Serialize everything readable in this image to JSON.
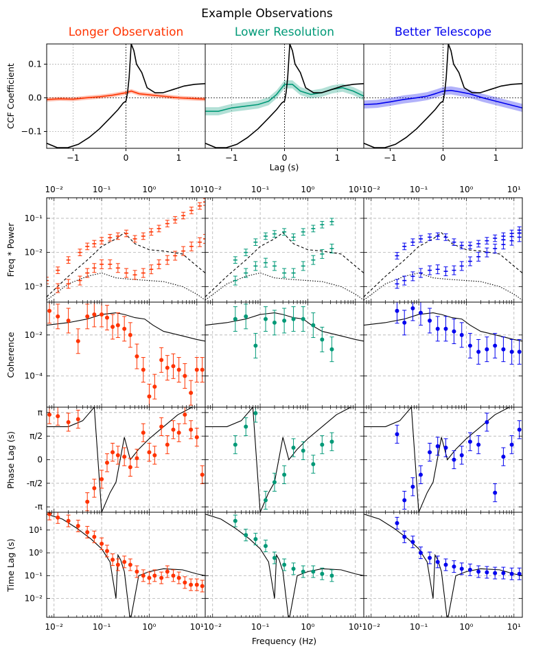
{
  "figure": {
    "title": "Example Observations",
    "colors": {
      "longer": "#ff3300",
      "lower": "#009977",
      "better": "#0000ee",
      "model": "#000000",
      "grid": "#b0b0b0"
    },
    "columns": [
      {
        "key": "longer",
        "title": "Longer Observation"
      },
      {
        "key": "lower",
        "title": "Lower Resolution"
      },
      {
        "key": "better",
        "title": "Better Telescope"
      }
    ]
  },
  "chart_data": [
    {
      "type": "line",
      "id": "ccf",
      "title": "",
      "xlabel": "Lag (s)",
      "ylabel": "CCF Coefficient",
      "xlim": [
        -1.5,
        1.5
      ],
      "ylim": [
        -0.15,
        0.16
      ],
      "xticks": [
        -1,
        0,
        1
      ],
      "xtick_labels": [
        "−1",
        "0",
        "1"
      ],
      "yticks": [
        -0.1,
        0.0,
        0.1
      ],
      "ytick_labels": [
        "−0.1",
        "0.0",
        "0.1"
      ],
      "grid": true,
      "model": {
        "name": "model CCF",
        "x": [
          -1.5,
          -1.3,
          -1.1,
          -0.9,
          -0.7,
          -0.5,
          -0.3,
          -0.15,
          -0.05,
          0.0,
          0.03,
          0.06,
          0.1,
          0.15,
          0.2,
          0.3,
          0.4,
          0.55,
          0.7,
          0.9,
          1.1,
          1.3,
          1.5
        ],
        "y": [
          -0.135,
          -0.148,
          -0.148,
          -0.138,
          -0.118,
          -0.092,
          -0.06,
          -0.035,
          -0.015,
          -0.01,
          0.015,
          0.06,
          0.16,
          0.14,
          0.1,
          0.075,
          0.03,
          0.015,
          0.015,
          0.025,
          0.035,
          0.04,
          0.042
        ]
      },
      "panels": [
        {
          "key": "longer",
          "x": [
            -1.5,
            -1.25,
            -1.0,
            -0.75,
            -0.5,
            -0.25,
            0.0,
            0.1,
            0.25,
            0.5,
            0.75,
            1.0,
            1.25,
            1.5
          ],
          "y": [
            -0.005,
            -0.003,
            -0.004,
            0.0,
            0.003,
            0.008,
            0.015,
            0.02,
            0.012,
            0.008,
            0.004,
            0.0,
            -0.002,
            -0.004
          ],
          "band": 0.006
        },
        {
          "key": "lower",
          "x": [
            -1.5,
            -1.25,
            -1.0,
            -0.75,
            -0.5,
            -0.3,
            -0.15,
            -0.05,
            0.0,
            0.15,
            0.3,
            0.5,
            0.7,
            0.9,
            1.1,
            1.3,
            1.5
          ],
          "y": [
            -0.04,
            -0.04,
            -0.03,
            -0.025,
            -0.02,
            -0.01,
            0.01,
            0.03,
            0.04,
            0.04,
            0.02,
            0.01,
            0.015,
            0.025,
            0.03,
            0.02,
            0.005
          ],
          "band": 0.012
        },
        {
          "key": "better",
          "x": [
            -1.5,
            -1.25,
            -1.0,
            -0.75,
            -0.5,
            -0.3,
            -0.15,
            0.0,
            0.15,
            0.3,
            0.5,
            0.75,
            1.0,
            1.25,
            1.5
          ],
          "y": [
            -0.02,
            -0.018,
            -0.012,
            -0.005,
            0.0,
            0.005,
            0.012,
            0.02,
            0.022,
            0.018,
            0.012,
            0.0,
            -0.01,
            -0.02,
            -0.03
          ],
          "band": 0.012
        }
      ]
    },
    {
      "type": "scatter",
      "id": "power",
      "ylabel": "Freq * Power",
      "xscale": "log",
      "yscale": "log",
      "xlim": [
        0.007,
        15
      ],
      "ylim": [
        0.00035,
        0.4
      ],
      "xtick_exponents": [
        -2,
        -1,
        0,
        1
      ],
      "ytick_labels": [
        "10⁻³",
        "10⁻²",
        "10⁻¹"
      ],
      "ytick_values": [
        0.001,
        0.01,
        0.1
      ],
      "grid": true,
      "models": {
        "dashed": {
          "x": [
            0.007,
            0.02,
            0.05,
            0.1,
            0.2,
            0.3,
            0.5,
            1.0,
            2.0,
            5.0,
            10.0,
            15.0
          ],
          "y": [
            0.0005,
            0.002,
            0.006,
            0.015,
            0.025,
            0.038,
            0.018,
            0.012,
            0.011,
            0.009,
            0.004,
            0.0025
          ]
        },
        "dotted": {
          "x": [
            0.007,
            0.02,
            0.05,
            0.1,
            0.2,
            0.3,
            0.5,
            1.0,
            2.0,
            5.0,
            10.0,
            15.0
          ],
          "y": [
            0.0004,
            0.0012,
            0.002,
            0.0025,
            0.0018,
            0.0017,
            0.0016,
            0.0015,
            0.0014,
            0.001,
            0.0006,
            0.0004
          ]
        }
      },
      "panels": [
        {
          "key": "longer",
          "upper": {
            "x": [
              0.007,
              0.012,
              0.02,
              0.035,
              0.05,
              0.07,
              0.1,
              0.15,
              0.22,
              0.33,
              0.5,
              0.75,
              1.1,
              1.6,
              2.4,
              3.5,
              5.2,
              7.7,
              11.5,
              15.0
            ],
            "y": [
              0.0015,
              0.003,
              0.006,
              0.01,
              0.015,
              0.018,
              0.022,
              0.027,
              0.03,
              0.036,
              0.025,
              0.03,
              0.04,
              0.05,
              0.07,
              0.09,
              0.12,
              0.17,
              0.23,
              0.3
            ]
          },
          "lower": {
            "x": [
              0.012,
              0.02,
              0.035,
              0.05,
              0.07,
              0.1,
              0.15,
              0.22,
              0.33,
              0.5,
              0.75,
              1.1,
              1.6,
              2.4,
              3.5,
              5.2,
              7.7,
              11.5,
              15.0
            ],
            "y": [
              0.0009,
              0.0012,
              0.0015,
              0.0025,
              0.0035,
              0.0045,
              0.0045,
              0.0035,
              0.0025,
              0.0022,
              0.0025,
              0.0032,
              0.0045,
              0.006,
              0.008,
              0.011,
              0.015,
              0.02,
              0.025
            ]
          }
        },
        {
          "key": "lower",
          "upper": {
            "x": [
              0.03,
              0.05,
              0.08,
              0.13,
              0.2,
              0.32,
              0.5,
              0.8,
              1.3,
              2.0,
              3.2
            ],
            "y": [
              0.006,
              0.01,
              0.02,
              0.03,
              0.035,
              0.04,
              0.028,
              0.04,
              0.05,
              0.065,
              0.08
            ]
          },
          "lower": {
            "x": [
              0.03,
              0.05,
              0.08,
              0.13,
              0.2,
              0.32,
              0.5,
              0.8,
              1.3,
              2.0,
              3.2
            ],
            "y": [
              0.0015,
              0.0025,
              0.004,
              0.005,
              0.004,
              0.0025,
              0.0025,
              0.004,
              0.006,
              0.009,
              0.013
            ]
          }
        },
        {
          "key": "better",
          "upper": {
            "x": [
              0.035,
              0.05,
              0.075,
              0.11,
              0.17,
              0.25,
              0.37,
              0.55,
              0.8,
              1.2,
              1.8,
              2.7,
              4.0,
              6.0,
              9.0,
              13.0
            ],
            "y": [
              0.008,
              0.015,
              0.02,
              0.025,
              0.028,
              0.03,
              0.028,
              0.02,
              0.016,
              0.016,
              0.018,
              0.022,
              0.026,
              0.03,
              0.036,
              0.045
            ]
          },
          "lower": {
            "x": [
              0.035,
              0.05,
              0.075,
              0.11,
              0.17,
              0.25,
              0.37,
              0.55,
              0.8,
              1.2,
              1.8,
              2.7,
              4.0,
              6.0,
              9.0,
              13.0
            ],
            "y": [
              0.0012,
              0.0015,
              0.002,
              0.0025,
              0.003,
              0.0032,
              0.0028,
              0.003,
              0.004,
              0.0055,
              0.0075,
              0.01,
              0.013,
              0.017,
              0.022,
              0.028
            ]
          }
        }
      ]
    },
    {
      "type": "scatter",
      "id": "coherence",
      "ylabel": "Coherence",
      "xscale": "log",
      "yscale": "log",
      "xlim": [
        0.007,
        15
      ],
      "ylim": [
        3e-06,
        0.4
      ],
      "ytick_labels": [
        "10⁻⁴",
        "10⁻²"
      ],
      "ytick_values": [
        0.0001,
        0.01
      ],
      "grid": true,
      "model": {
        "x": [
          0.007,
          0.02,
          0.05,
          0.1,
          0.2,
          0.3,
          0.5,
          0.8,
          1.2,
          2.0,
          3.0,
          5.0,
          10.0,
          15.0
        ],
        "y": [
          0.03,
          0.04,
          0.06,
          0.1,
          0.12,
          0.1,
          0.07,
          0.06,
          0.03,
          0.015,
          0.012,
          0.009,
          0.006,
          0.005
        ]
      },
      "panels": [
        {
          "key": "longer",
          "x": [
            0.008,
            0.012,
            0.02,
            0.032,
            0.05,
            0.07,
            0.1,
            0.13,
            0.17,
            0.22,
            0.3,
            0.4,
            0.55,
            0.75,
            1.0,
            1.3,
            1.8,
            2.4,
            3.2,
            4.2,
            5.6,
            7.5,
            10.0,
            13.0
          ],
          "y": [
            0.15,
            0.08,
            0.05,
            0.005,
            0.08,
            0.1,
            0.1,
            0.07,
            0.025,
            0.03,
            0.02,
            0.01,
            0.0009,
            0.0002,
            1e-05,
            3e-05,
            0.0006,
            0.00025,
            0.0003,
            0.0002,
            0.0001,
            1.5e-05,
            0.0002,
            0.0002
          ]
        },
        {
          "key": "lower",
          "x": [
            0.03,
            0.05,
            0.08,
            0.13,
            0.2,
            0.32,
            0.5,
            0.8,
            1.3,
            2.0,
            3.2
          ],
          "y": [
            0.06,
            0.08,
            0.003,
            0.06,
            0.04,
            0.05,
            0.06,
            0.06,
            0.03,
            0.006,
            0.002
          ]
        },
        {
          "key": "better",
          "x": [
            0.035,
            0.05,
            0.075,
            0.11,
            0.17,
            0.25,
            0.37,
            0.55,
            0.8,
            1.2,
            1.8,
            2.7,
            4.0,
            6.0,
            9.0,
            13.0
          ],
          "y": [
            0.15,
            0.04,
            0.2,
            0.12,
            0.05,
            0.02,
            0.02,
            0.015,
            0.01,
            0.003,
            0.0015,
            0.002,
            0.003,
            0.002,
            0.0015,
            0.0015
          ]
        }
      ]
    },
    {
      "type": "scatter",
      "id": "phase",
      "ylabel": "Phase Lag (s)",
      "xscale": "log",
      "xlim": [
        0.007,
        15
      ],
      "ylim": [
        -3.5,
        3.5
      ],
      "ytick_labels": [
        "-π",
        "-π/2",
        "0",
        "π/2",
        "π"
      ],
      "ytick_values": [
        -3.14159,
        -1.5708,
        0,
        1.5708,
        3.14159
      ],
      "grid": true,
      "model": {
        "x": [
          0.007,
          0.02,
          0.04,
          0.07,
          0.1,
          0.15,
          0.2,
          0.3,
          0.4,
          0.6,
          1.0,
          2.0,
          4.0,
          8.0,
          15.0
        ],
        "y": [
          2.2,
          2.2,
          2.6,
          3.5,
          -3.5,
          -2.2,
          -1.5,
          1.5,
          0.0,
          0.7,
          1.4,
          2.2,
          3.0,
          3.5,
          3.5
        ]
      },
      "panels": [
        {
          "key": "longer",
          "x": [
            0.008,
            0.012,
            0.02,
            0.032,
            0.05,
            0.07,
            0.1,
            0.13,
            0.17,
            0.22,
            0.3,
            0.4,
            0.55,
            0.75,
            1.0,
            1.3,
            1.8,
            2.4,
            3.2,
            4.2,
            5.6,
            7.5,
            10.0,
            13.0
          ],
          "y": [
            3.0,
            2.9,
            2.5,
            2.7,
            -2.8,
            -1.9,
            -1.3,
            -0.2,
            0.5,
            0.3,
            0.2,
            -0.5,
            0.1,
            1.8,
            0.5,
            0.3,
            2.2,
            1.0,
            2.0,
            1.8,
            3.0,
            2.0,
            1.5,
            -1.0
          ]
        },
        {
          "key": "lower",
          "x": [
            0.03,
            0.05,
            0.08,
            0.13,
            0.2,
            0.32,
            0.5,
            0.8,
            1.3,
            2.0,
            3.2
          ],
          "y": [
            1.0,
            2.2,
            3.1,
            -2.7,
            -1.5,
            -1.0,
            0.8,
            0.6,
            -0.3,
            1.0,
            1.2
          ]
        },
        {
          "key": "better",
          "x": [
            0.035,
            0.05,
            0.075,
            0.11,
            0.17,
            0.25,
            0.37,
            0.55,
            0.8,
            1.2,
            1.8,
            2.7,
            4.0,
            6.0,
            9.0,
            13.0
          ],
          "y": [
            1.7,
            -2.7,
            -1.8,
            -1.0,
            0.5,
            0.9,
            0.8,
            0.0,
            0.3,
            1.2,
            1.0,
            2.5,
            -2.2,
            0.2,
            1.0,
            2.0
          ]
        }
      ]
    },
    {
      "type": "scatter",
      "id": "timelag",
      "ylabel": "Time Lag (s)",
      "xlabel": "Frequency (Hz)",
      "xscale": "log",
      "yscale": "log",
      "xlim": [
        0.007,
        15
      ],
      "ylim": [
        0.0015,
        60
      ],
      "xtick_exponents": [
        -2,
        -1,
        0,
        1
      ],
      "ytick_labels": [
        "10⁻²",
        "10⁻¹",
        "10⁰",
        "10¹"
      ],
      "ytick_values": [
        0.01,
        0.1,
        1,
        10
      ],
      "grid": true,
      "model": {
        "x": [
          0.007,
          0.015,
          0.03,
          0.06,
          0.1,
          0.15,
          0.2,
          0.22,
          0.25,
          0.3,
          0.4,
          0.6,
          1.0,
          2.0,
          5.0,
          10.0,
          15.0
        ],
        "y": [
          50,
          30,
          12,
          4,
          1.5,
          0.4,
          0.01,
          0.8,
          0.5,
          0.15,
          0.001,
          0.1,
          0.15,
          0.2,
          0.18,
          0.12,
          0.1
        ]
      },
      "panels": [
        {
          "key": "longer",
          "x": [
            0.008,
            0.012,
            0.02,
            0.032,
            0.05,
            0.07,
            0.1,
            0.13,
            0.17,
            0.22,
            0.3,
            0.4,
            0.55,
            0.75,
            1.0,
            1.3,
            1.8,
            2.4,
            3.2,
            4.2,
            5.6,
            7.5,
            10.0,
            13.0
          ],
          "y": [
            50,
            35,
            25,
            15,
            8,
            5,
            2.5,
            1.2,
            0.5,
            0.3,
            0.4,
            0.3,
            0.15,
            0.1,
            0.08,
            0.1,
            0.08,
            0.15,
            0.1,
            0.08,
            0.05,
            0.04,
            0.04,
            0.035
          ]
        },
        {
          "key": "lower",
          "x": [
            0.03,
            0.05,
            0.08,
            0.13,
            0.2,
            0.32,
            0.5,
            0.8,
            1.3,
            2.0,
            3.2
          ],
          "y": [
            25,
            6,
            4,
            2.0,
            0.6,
            0.3,
            0.2,
            0.15,
            0.15,
            0.12,
            0.1
          ]
        },
        {
          "key": "better",
          "x": [
            0.035,
            0.05,
            0.075,
            0.11,
            0.17,
            0.25,
            0.37,
            0.55,
            0.8,
            1.2,
            1.8,
            2.7,
            4.0,
            6.0,
            9.0,
            13.0
          ],
          "y": [
            20,
            5,
            3,
            1.0,
            0.6,
            0.4,
            0.3,
            0.25,
            0.2,
            0.18,
            0.15,
            0.14,
            0.13,
            0.13,
            0.12,
            0.12
          ]
        }
      ]
    }
  ]
}
